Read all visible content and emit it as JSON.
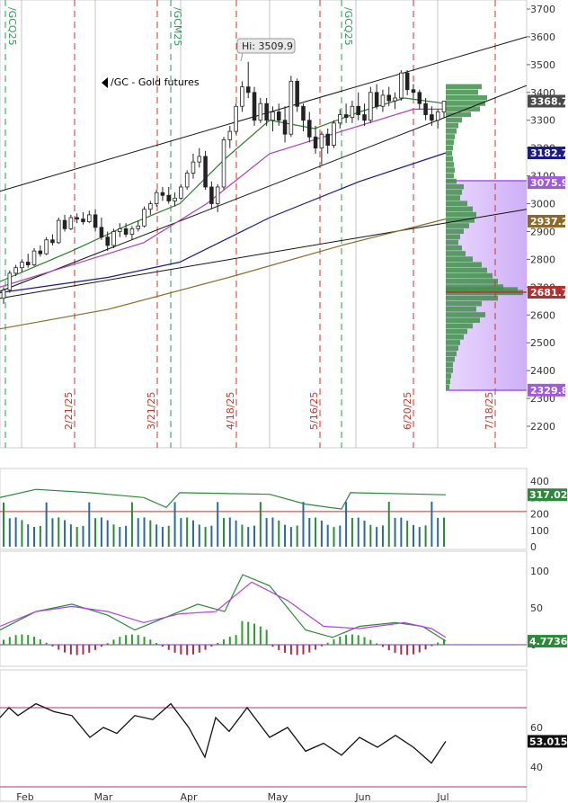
{
  "chart_data": {
    "type": "candlestick",
    "title": "/GC - Gold futures",
    "annotation_high": "Hi: 3509.9",
    "x_months": [
      "Feb",
      "Mar",
      "Apr",
      "May",
      "Jun",
      "Jul"
    ],
    "contract_roll_labels": [
      "/GCQ25",
      "/GCM25",
      "/GCQ25"
    ],
    "event_date_labels": [
      "2/21/25",
      "3/21/25",
      "4/18/25",
      "5/16/25",
      "6/20/25",
      "7/18/25"
    ],
    "price_axis": {
      "ticks": [
        2200,
        2300,
        2400,
        2500,
        2600,
        2700,
        2800,
        2900,
        3000,
        3100,
        3200,
        3300,
        3400,
        3500,
        3600,
        3700
      ],
      "ylim": [
        2170,
        3720
      ]
    },
    "price_tags": [
      {
        "label": "3368.7",
        "value": 3368.7,
        "color": "#4a4a4a"
      },
      {
        "label": "3182.7",
        "value": 3182.7,
        "color": "#1a1a8a"
      },
      {
        "label": "3075.9",
        "value": 3075.9,
        "color": "#a259e0"
      },
      {
        "label": "2937.2",
        "value": 2937.2,
        "color": "#8a6a2a"
      },
      {
        "label": "2681.7",
        "value": 2681.7,
        "color": "#b03030"
      },
      {
        "label": "2329.8",
        "value": 2329.8,
        "color": "#a259e0"
      }
    ],
    "candles": [
      {
        "o": 2660,
        "h": 2700,
        "l": 2640,
        "c": 2690
      },
      {
        "o": 2690,
        "h": 2760,
        "l": 2680,
        "c": 2750
      },
      {
        "o": 2750,
        "h": 2780,
        "l": 2740,
        "c": 2770
      },
      {
        "o": 2770,
        "h": 2800,
        "l": 2755,
        "c": 2790
      },
      {
        "o": 2790,
        "h": 2820,
        "l": 2770,
        "c": 2780
      },
      {
        "o": 2780,
        "h": 2840,
        "l": 2775,
        "c": 2830
      },
      {
        "o": 2830,
        "h": 2850,
        "l": 2810,
        "c": 2820
      },
      {
        "o": 2820,
        "h": 2880,
        "l": 2815,
        "c": 2870
      },
      {
        "o": 2870,
        "h": 2890,
        "l": 2850,
        "c": 2860
      },
      {
        "o": 2860,
        "h": 2950,
        "l": 2855,
        "c": 2940
      },
      {
        "o": 2940,
        "h": 2960,
        "l": 2900,
        "c": 2910
      },
      {
        "o": 2910,
        "h": 2960,
        "l": 2905,
        "c": 2950
      },
      {
        "o": 2950,
        "h": 2965,
        "l": 2930,
        "c": 2945
      },
      {
        "o": 2945,
        "h": 2970,
        "l": 2925,
        "c": 2935
      },
      {
        "o": 2935,
        "h": 2975,
        "l": 2930,
        "c": 2960
      },
      {
        "o": 2960,
        "h": 2980,
        "l": 2900,
        "c": 2915
      },
      {
        "o": 2915,
        "h": 2950,
        "l": 2870,
        "c": 2880
      },
      {
        "o": 2880,
        "h": 2900,
        "l": 2830,
        "c": 2850
      },
      {
        "o": 2850,
        "h": 2910,
        "l": 2840,
        "c": 2900
      },
      {
        "o": 2900,
        "h": 2930,
        "l": 2880,
        "c": 2910
      },
      {
        "o": 2910,
        "h": 2930,
        "l": 2880,
        "c": 2890
      },
      {
        "o": 2890,
        "h": 2920,
        "l": 2870,
        "c": 2910
      },
      {
        "o": 2910,
        "h": 2940,
        "l": 2900,
        "c": 2920
      },
      {
        "o": 2920,
        "h": 2990,
        "l": 2915,
        "c": 2980
      },
      {
        "o": 2980,
        "h": 3010,
        "l": 2960,
        "c": 3000
      },
      {
        "o": 3000,
        "h": 3050,
        "l": 2990,
        "c": 3040
      },
      {
        "o": 3040,
        "h": 3060,
        "l": 3010,
        "c": 3030
      },
      {
        "o": 3030,
        "h": 3060,
        "l": 3000,
        "c": 3010
      },
      {
        "o": 3010,
        "h": 3040,
        "l": 2990,
        "c": 3020
      },
      {
        "o": 3020,
        "h": 3070,
        "l": 3015,
        "c": 3060
      },
      {
        "o": 3060,
        "h": 3120,
        "l": 3050,
        "c": 3110
      },
      {
        "o": 3110,
        "h": 3180,
        "l": 3090,
        "c": 3150
      },
      {
        "o": 3150,
        "h": 3200,
        "l": 3130,
        "c": 3170
      },
      {
        "o": 3170,
        "h": 3190,
        "l": 3050,
        "c": 3060
      },
      {
        "o": 3060,
        "h": 3080,
        "l": 2980,
        "c": 3000
      },
      {
        "o": 3000,
        "h": 3070,
        "l": 2970,
        "c": 3060
      },
      {
        "o": 3060,
        "h": 3240,
        "l": 3050,
        "c": 3230
      },
      {
        "o": 3230,
        "h": 3280,
        "l": 3200,
        "c": 3260
      },
      {
        "o": 3260,
        "h": 3360,
        "l": 3250,
        "c": 3350
      },
      {
        "o": 3350,
        "h": 3440,
        "l": 3330,
        "c": 3420
      },
      {
        "o": 3420,
        "h": 3509.9,
        "l": 3380,
        "c": 3400
      },
      {
        "o": 3400,
        "h": 3420,
        "l": 3280,
        "c": 3300
      },
      {
        "o": 3300,
        "h": 3380,
        "l": 3290,
        "c": 3360
      },
      {
        "o": 3360,
        "h": 3380,
        "l": 3280,
        "c": 3300
      },
      {
        "o": 3300,
        "h": 3350,
        "l": 3260,
        "c": 3330
      },
      {
        "o": 3330,
        "h": 3360,
        "l": 3280,
        "c": 3300
      },
      {
        "o": 3300,
        "h": 3350,
        "l": 3220,
        "c": 3250
      },
      {
        "o": 3250,
        "h": 3460,
        "l": 3240,
        "c": 3440
      },
      {
        "o": 3440,
        "h": 3450,
        "l": 3330,
        "c": 3350
      },
      {
        "o": 3350,
        "h": 3360,
        "l": 3260,
        "c": 3300
      },
      {
        "o": 3300,
        "h": 3330,
        "l": 3220,
        "c": 3240
      },
      {
        "o": 3240,
        "h": 3280,
        "l": 3180,
        "c": 3200
      },
      {
        "o": 3200,
        "h": 3260,
        "l": 3140,
        "c": 3250
      },
      {
        "o": 3250,
        "h": 3270,
        "l": 3180,
        "c": 3210
      },
      {
        "o": 3210,
        "h": 3300,
        "l": 3200,
        "c": 3290
      },
      {
        "o": 3290,
        "h": 3340,
        "l": 3270,
        "c": 3320
      },
      {
        "o": 3320,
        "h": 3360,
        "l": 3290,
        "c": 3310
      },
      {
        "o": 3310,
        "h": 3370,
        "l": 3290,
        "c": 3350
      },
      {
        "o": 3350,
        "h": 3400,
        "l": 3300,
        "c": 3320
      },
      {
        "o": 3320,
        "h": 3360,
        "l": 3280,
        "c": 3300
      },
      {
        "o": 3300,
        "h": 3420,
        "l": 3290,
        "c": 3400
      },
      {
        "o": 3400,
        "h": 3430,
        "l": 3340,
        "c": 3350
      },
      {
        "o": 3350,
        "h": 3410,
        "l": 3330,
        "c": 3390
      },
      {
        "o": 3390,
        "h": 3420,
        "l": 3350,
        "c": 3370
      },
      {
        "o": 3370,
        "h": 3400,
        "l": 3340,
        "c": 3380
      },
      {
        "o": 3380,
        "h": 3480,
        "l": 3370,
        "c": 3470
      },
      {
        "o": 3470,
        "h": 3480,
        "l": 3390,
        "c": 3410
      },
      {
        "o": 3410,
        "h": 3430,
        "l": 3380,
        "c": 3400
      },
      {
        "o": 3400,
        "h": 3410,
        "l": 3340,
        "c": 3360
      },
      {
        "o": 3360,
        "h": 3380,
        "l": 3300,
        "c": 3320
      },
      {
        "o": 3320,
        "h": 3350,
        "l": 3280,
        "c": 3300
      },
      {
        "o": 3300,
        "h": 3340,
        "l": 3270,
        "c": 3330
      },
      {
        "o": 3330,
        "h": 3370,
        "l": 3310,
        "c": 3368.7
      }
    ],
    "volume_axis": {
      "ticks": [
        0,
        100,
        200,
        300,
        400
      ],
      "last_value_label": "317.029"
    },
    "oscillator_axis": {
      "ticks": [
        0,
        50,
        100
      ],
      "last_value_label": "4.77367"
    },
    "rsi_axis": {
      "ticks": [
        40,
        60
      ],
      "last_value_label": "53.0154"
    }
  }
}
